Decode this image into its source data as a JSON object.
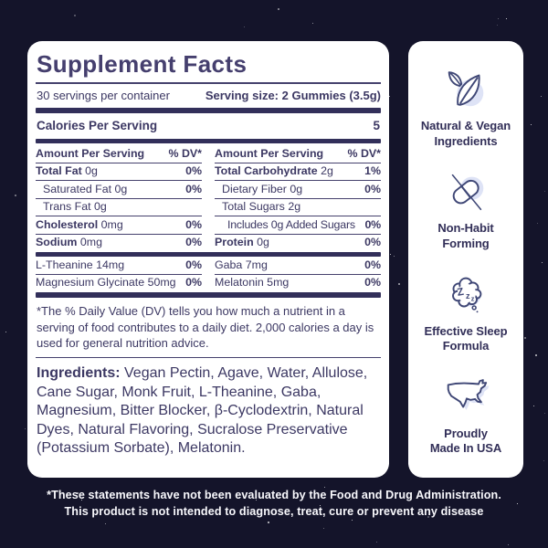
{
  "colors": {
    "bg": "#14142a",
    "panel": "#ffffff",
    "heading": "#453f6e",
    "text": "#3c3863",
    "line": "#45416d",
    "bar": "#322f5a",
    "icon_stroke": "#3f4776",
    "icon_fill": "#dee3f6",
    "sidebar_text": "#322f58",
    "footer_text": "#f8f8fc"
  },
  "panel": {
    "title": "Supplement Facts",
    "servings_per_container": "30 servings per container",
    "serving_size": "Serving size: 2 Gummies (3.5g)",
    "calories_label": "Calories Per Serving",
    "calories_value": "5",
    "footnote": "*The % Daily Value (DV) tells you how much a nutrient in a serving of food contributes to a daily diet. 2,000 calories a day is used for general nutrition advice.",
    "ingredients_label": "Ingredients:",
    "ingredients_text": " Vegan Pectin, Agave, Water, Allulose, Cane Sugar, Monk Fruit, L-Theanine, Gaba, Magnesium, Bitter Blocker, β-Cyclodextrin, Natural Dyes, Natural Flavoring, Sucralose Preservative (Potassium Sorbate), Melatonin."
  },
  "facts_table": {
    "header": {
      "amount": "Amount Per Serving",
      "dv": "% DV*"
    },
    "left_main": [
      {
        "name": "Total Fat",
        "amount": "0g",
        "dv": "0%",
        "indent": 0,
        "bold": true
      },
      {
        "name": "Saturated Fat",
        "amount": "0g",
        "dv": "0%",
        "indent": 1,
        "bold": false
      },
      {
        "name": "Trans Fat",
        "amount": "0g",
        "dv": "",
        "indent": 1,
        "bold": false
      },
      {
        "name": "Cholesterol",
        "amount": "0mg",
        "dv": "0%",
        "indent": 0,
        "bold": true
      },
      {
        "name": "Sodium",
        "amount": "0mg",
        "dv": "0%",
        "indent": 0,
        "bold": true
      }
    ],
    "right_main": [
      {
        "name": "Total Carbohydrate",
        "amount": "2g",
        "dv": "1%",
        "indent": 0,
        "bold": true
      },
      {
        "name": "Dietary Fiber",
        "amount": "0g",
        "dv": "0%",
        "indent": 1,
        "bold": false
      },
      {
        "name": "Total Sugars",
        "amount": "2g",
        "dv": "",
        "indent": 1,
        "bold": false
      },
      {
        "name": "Includes 0g Added Sugars",
        "amount": "",
        "dv": "0%",
        "indent": 2,
        "bold": false
      },
      {
        "name": "Protein",
        "amount": "0g",
        "dv": "0%",
        "indent": 0,
        "bold": true
      }
    ],
    "left_extra": [
      {
        "name": "L-Theanine",
        "amount": "14mg",
        "dv": "0%",
        "indent": 0,
        "bold": false
      },
      {
        "name": "Magnesium Glycinate",
        "amount": "50mg",
        "dv": "0%",
        "indent": 0,
        "bold": false
      }
    ],
    "right_extra": [
      {
        "name": "Gaba",
        "amount": "7mg",
        "dv": "0%",
        "indent": 0,
        "bold": false
      },
      {
        "name": "Melatonin",
        "amount": "5mg",
        "dv": "0%",
        "indent": 0,
        "bold": false
      }
    ]
  },
  "sidebar": {
    "items": [
      {
        "icon": "leaf-icon",
        "line1": "Natural & Vegan",
        "line2": "Ingredients"
      },
      {
        "icon": "crossed-pill-icon",
        "line1": "Non-Habit",
        "line2": "Forming"
      },
      {
        "icon": "sleep-zzz-icon",
        "line1": "Effective Sleep",
        "line2": "Formula"
      },
      {
        "icon": "usa-map-icon",
        "line1": "Proudly",
        "line2": "Made In USA"
      }
    ]
  },
  "icons": {
    "sleep_z": [
      "Z",
      "z",
      "z"
    ]
  },
  "footer": {
    "line1": "*These statements have not been evaluated by the Food and Drug Administration.",
    "line2": "This product is not intended to diagnose, treat, cure or prevent any disease"
  }
}
